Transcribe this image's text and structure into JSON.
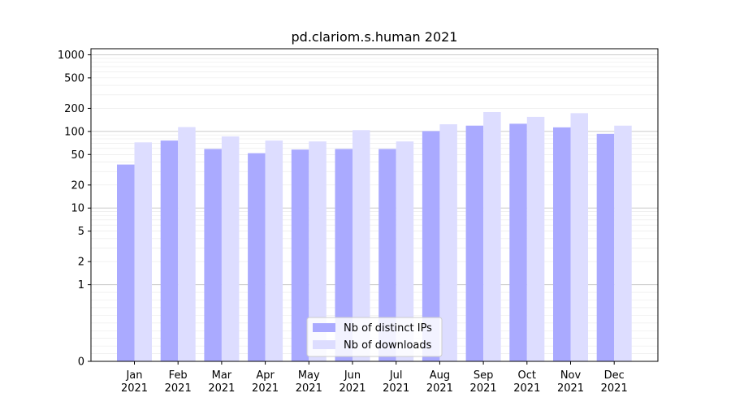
{
  "chart_data": {
    "type": "bar",
    "title": "pd.clariom.s.human 2021",
    "xlabel": "",
    "ylabel": "",
    "yscale": "symlog",
    "ylim": [
      0,
      1200
    ],
    "yticks": [
      0,
      1,
      2,
      5,
      10,
      20,
      50,
      100,
      200,
      500,
      1000
    ],
    "ytick_labels": [
      "0",
      "1",
      "2",
      "5",
      "10",
      "20",
      "50",
      "100",
      "200",
      "500",
      "1000"
    ],
    "categories": [
      [
        "Jan",
        "2021"
      ],
      [
        "Feb",
        "2021"
      ],
      [
        "Mar",
        "2021"
      ],
      [
        "Apr",
        "2021"
      ],
      [
        "May",
        "2021"
      ],
      [
        "Jun",
        "2021"
      ],
      [
        "Jul",
        "2021"
      ],
      [
        "Aug",
        "2021"
      ],
      [
        "Sep",
        "2021"
      ],
      [
        "Oct",
        "2021"
      ],
      [
        "Nov",
        "2021"
      ],
      [
        "Dec",
        "2021"
      ]
    ],
    "series": [
      {
        "name": "Nb of distinct IPs",
        "color": "#aaaaff",
        "values": [
          37,
          76,
          59,
          52,
          58,
          59,
          59,
          101,
          119,
          126,
          113,
          93
        ]
      },
      {
        "name": "Nb of downloads",
        "color": "#ddddff",
        "values": [
          72,
          114,
          86,
          76,
          74,
          104,
          74,
          124,
          179,
          155,
          173,
          119
        ]
      }
    ],
    "grid": true,
    "legend_position": "bottom-center"
  }
}
